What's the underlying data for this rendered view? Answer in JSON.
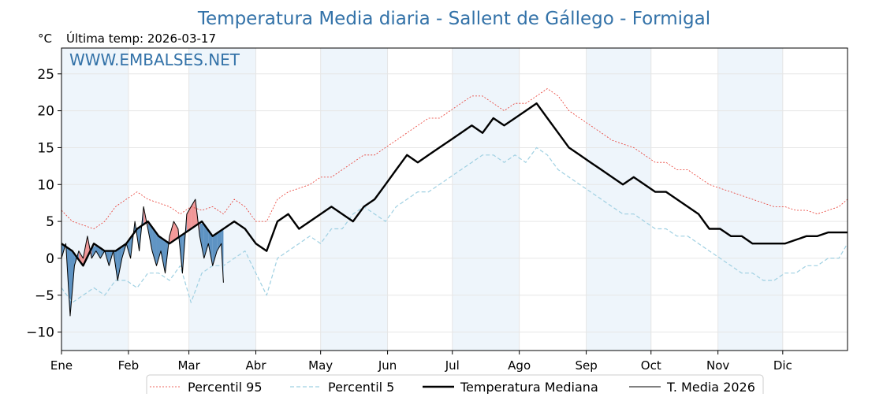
{
  "chart_data": {
    "type": "line",
    "title": "Temperatura Media diaria - Sallent de Gállego - Formigal",
    "unit_label": "°C",
    "subtitle": "Última temp: 2026-03-17",
    "watermark": "WWW.EMBALSES.NET",
    "ylim": [
      -12.5,
      28.5
    ],
    "y_ticks": [
      -10,
      -5,
      0,
      5,
      10,
      15,
      20,
      25
    ],
    "x_ticks": [
      {
        "day": 1,
        "label": "Ene"
      },
      {
        "day": 32,
        "label": "Feb"
      },
      {
        "day": 60,
        "label": "Mar"
      },
      {
        "day": 91,
        "label": "Abr"
      },
      {
        "day": 121,
        "label": "May"
      },
      {
        "day": 152,
        "label": "Jun"
      },
      {
        "day": 182,
        "label": "Jul"
      },
      {
        "day": 213,
        "label": "Ago"
      },
      {
        "day": 244,
        "label": "Sep"
      },
      {
        "day": 274,
        "label": "Oct"
      },
      {
        "day": 305,
        "label": "Nov"
      },
      {
        "day": 335,
        "label": "Dic"
      }
    ],
    "shaded_months": [
      "Ene",
      "Mar",
      "May",
      "Jul",
      "Sep",
      "Nov"
    ],
    "grid": true,
    "legend_position": "bottom-center",
    "colors": {
      "p95": "#e8382f",
      "p5": "#9fd0e2",
      "median": "#000000",
      "current": "#000000",
      "above_fill": "#f08080",
      "below_fill": "#3a7bb5",
      "title": "#3372a8",
      "shade": "#eef5fb"
    },
    "series": [
      {
        "name": "Percentil 95",
        "key": "p95",
        "x": [
          1,
          6,
          11,
          16,
          21,
          26,
          31,
          36,
          41,
          46,
          51,
          56,
          61,
          66,
          71,
          76,
          81,
          86,
          91,
          96,
          101,
          106,
          111,
          116,
          121,
          126,
          131,
          136,
          141,
          146,
          151,
          156,
          161,
          166,
          171,
          176,
          181,
          186,
          191,
          196,
          201,
          206,
          211,
          216,
          221,
          226,
          231,
          236,
          241,
          246,
          251,
          256,
          261,
          266,
          271,
          276,
          281,
          286,
          291,
          296,
          301,
          306,
          311,
          316,
          321,
          326,
          331,
          336,
          341,
          346,
          351,
          356,
          361,
          365
        ],
        "y": [
          6.5,
          5,
          4.5,
          4,
          5,
          7,
          8,
          9,
          8,
          7.5,
          7,
          6,
          7,
          6.5,
          7,
          6,
          8,
          7,
          5,
          5,
          8,
          9,
          9.5,
          10,
          11,
          11,
          12,
          13,
          14,
          14,
          15,
          16,
          17,
          18,
          19,
          19,
          20,
          21,
          22,
          22,
          21,
          20,
          21,
          21,
          22,
          23,
          22,
          20,
          19,
          18,
          17,
          16,
          15.5,
          15,
          14,
          13,
          13,
          12,
          12,
          11,
          10,
          9.5,
          9,
          8.5,
          8,
          7.5,
          7,
          7,
          6.5,
          6.5,
          6,
          6.5,
          7,
          8
        ]
      },
      {
        "name": "Percentil 5",
        "key": "p5",
        "x": [
          1,
          6,
          11,
          16,
          21,
          26,
          31,
          36,
          41,
          46,
          51,
          56,
          61,
          66,
          71,
          76,
          81,
          86,
          91,
          96,
          101,
          106,
          111,
          116,
          121,
          126,
          131,
          136,
          141,
          146,
          151,
          156,
          161,
          166,
          171,
          176,
          181,
          186,
          191,
          196,
          201,
          206,
          211,
          216,
          221,
          226,
          231,
          236,
          241,
          246,
          251,
          256,
          261,
          266,
          271,
          276,
          281,
          286,
          291,
          296,
          301,
          306,
          311,
          316,
          321,
          326,
          331,
          336,
          341,
          346,
          351,
          356,
          361,
          365
        ],
        "y": [
          -4,
          -6,
          -5,
          -4,
          -5,
          -3,
          -3,
          -4,
          -2,
          -2,
          -3,
          -1,
          -6,
          -2,
          -1,
          -1,
          0,
          1,
          -2,
          -5,
          0,
          1,
          2,
          3,
          2,
          4,
          4,
          6,
          7,
          6,
          5,
          7,
          8,
          9,
          9,
          10,
          11,
          12,
          13,
          14,
          14,
          13,
          14,
          13,
          15,
          14,
          12,
          11,
          10,
          9,
          8,
          7,
          6,
          6,
          5,
          4,
          4,
          3,
          3,
          2,
          1,
          0,
          -1,
          -2,
          -2,
          -3,
          -3,
          -2,
          -2,
          -1,
          -1,
          0,
          0,
          2
        ]
      },
      {
        "name": "Temperatura Mediana",
        "key": "median",
        "x": [
          1,
          6,
          11,
          16,
          21,
          26,
          31,
          36,
          41,
          46,
          51,
          56,
          61,
          66,
          71,
          76,
          81,
          86,
          91,
          96,
          101,
          106,
          111,
          116,
          121,
          126,
          131,
          136,
          141,
          146,
          151,
          156,
          161,
          166,
          171,
          176,
          181,
          186,
          191,
          196,
          201,
          206,
          211,
          216,
          221,
          226,
          231,
          236,
          241,
          246,
          251,
          256,
          261,
          266,
          271,
          276,
          281,
          286,
          291,
          296,
          301,
          306,
          311,
          316,
          321,
          326,
          331,
          336,
          341,
          346,
          351,
          356,
          361,
          365
        ],
        "y": [
          2,
          1,
          -1,
          2,
          1,
          1,
          2,
          4,
          5,
          3,
          2,
          3,
          4,
          5,
          3,
          4,
          5,
          4,
          2,
          1,
          5,
          6,
          4,
          5,
          6,
          7,
          6,
          5,
          7,
          8,
          10,
          12,
          14,
          13,
          14,
          15,
          16,
          17,
          18,
          17,
          19,
          18,
          19,
          20,
          21,
          19,
          17,
          15,
          14,
          13,
          12,
          11,
          10,
          11,
          10,
          9,
          9,
          8,
          7,
          6,
          4,
          4,
          3,
          3,
          2,
          2,
          2,
          2,
          2.5,
          3,
          3,
          3.5,
          3.5,
          3.5
        ]
      },
      {
        "name": "T. Media 2026",
        "key": "current",
        "x": [
          1,
          3,
          5,
          7,
          9,
          11,
          13,
          15,
          17,
          19,
          21,
          23,
          25,
          27,
          29,
          31,
          33,
          35,
          37,
          39,
          41,
          43,
          45,
          47,
          49,
          51,
          53,
          55,
          57,
          59,
          61,
          63,
          65,
          67,
          69,
          71,
          73,
          75,
          76
        ],
        "y": [
          0,
          2,
          -7.8,
          -1,
          1,
          0,
          3,
          0,
          1,
          0,
          1,
          -1,
          1,
          -3,
          0,
          2,
          0,
          5,
          1,
          7,
          4,
          1,
          -1,
          1,
          -2,
          3,
          5,
          4,
          -2,
          6,
          7,
          8,
          3,
          0,
          2,
          -1,
          1,
          2,
          -3.3
        ]
      }
    ]
  },
  "legend": {
    "items": [
      {
        "label": "Percentil 95",
        "key": "p95",
        "style": "dotted"
      },
      {
        "label": "Percentil 5",
        "key": "p5",
        "style": "dashed"
      },
      {
        "label": "Temperatura Mediana",
        "key": "median",
        "style": "thick"
      },
      {
        "label": "T. Media 2026",
        "key": "current",
        "style": "thin"
      }
    ]
  }
}
